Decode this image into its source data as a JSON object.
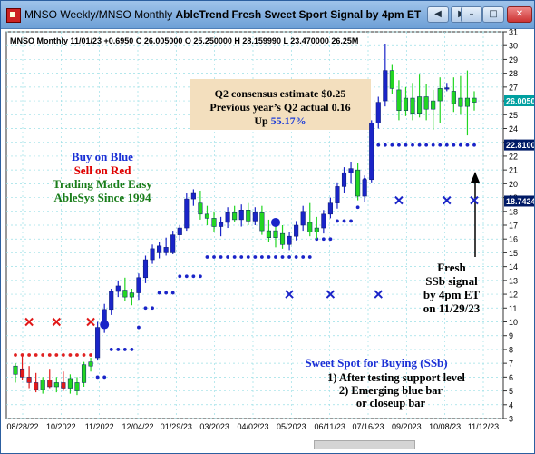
{
  "window": {
    "title": "MNSO Weekly/MNSO Monthly",
    "title_bold": "AbleTrend Fresh Sweet Sport Signal by 4pm ET",
    "buttons": {
      "back": "◀",
      "forward": "▶",
      "minimize": "–",
      "maximize": "□",
      "close": "✕"
    }
  },
  "chart_data": {
    "type": "candlestick",
    "header_line": "MNSO  Monthly 11/01/23 +0.6950 C 26.005000 O 25.250000 H 28.159990 L 23.470000 26.25M",
    "ylim": [
      3,
      31
    ],
    "y_ticks": [
      3,
      4,
      5,
      6,
      7,
      8,
      9,
      10,
      11,
      12,
      13,
      14,
      15,
      16,
      17,
      18,
      19,
      20,
      21,
      22,
      23,
      24,
      25,
      26,
      27,
      28,
      29,
      30,
      31
    ],
    "x_tick_labels": [
      "08/28/22",
      "10/2022",
      "11/2022",
      "12/04/22",
      "01/29/23",
      "03/2023",
      "04/02/23",
      "05/2023",
      "06/11/23",
      "07/16/23",
      "09/2023",
      "10/08/23",
      "11/12/23"
    ],
    "price_tags": [
      {
        "label": "26.0050",
        "value": 26.005,
        "color": "#00a0a0"
      },
      {
        "label": "22.8100",
        "value": 22.81,
        "color": "#001a66"
      },
      {
        "label": "18.7424",
        "value": 18.7424,
        "color": "#001a66"
      }
    ],
    "candles": [
      {
        "o": 6.2,
        "h": 7.0,
        "l": 5.6,
        "c": 6.8,
        "col": "green"
      },
      {
        "o": 6.6,
        "h": 7.5,
        "l": 5.8,
        "c": 6.0,
        "col": "red"
      },
      {
        "o": 6.0,
        "h": 6.8,
        "l": 5.2,
        "c": 5.6,
        "col": "red"
      },
      {
        "o": 5.6,
        "h": 6.3,
        "l": 4.9,
        "c": 5.1,
        "col": "red"
      },
      {
        "o": 5.1,
        "h": 6.0,
        "l": 4.8,
        "c": 5.8,
        "col": "green"
      },
      {
        "o": 5.8,
        "h": 6.6,
        "l": 5.2,
        "c": 5.3,
        "col": "red"
      },
      {
        "o": 5.3,
        "h": 6.0,
        "l": 4.9,
        "c": 5.6,
        "col": "green"
      },
      {
        "o": 5.6,
        "h": 6.4,
        "l": 5.0,
        "c": 5.2,
        "col": "red"
      },
      {
        "o": 5.2,
        "h": 6.2,
        "l": 4.8,
        "c": 5.9,
        "col": "green"
      },
      {
        "o": 5.0,
        "h": 6.0,
        "l": 4.7,
        "c": 5.6,
        "col": "green"
      },
      {
        "o": 5.6,
        "h": 7.1,
        "l": 5.3,
        "c": 6.9,
        "col": "green"
      },
      {
        "o": 6.8,
        "h": 7.4,
        "l": 6.4,
        "c": 7.1,
        "col": "green"
      },
      {
        "o": 7.4,
        "h": 10.0,
        "l": 7.2,
        "c": 9.6,
        "col": "blue"
      },
      {
        "o": 9.6,
        "h": 11.3,
        "l": 9.2,
        "c": 10.9,
        "col": "blue"
      },
      {
        "o": 10.9,
        "h": 12.4,
        "l": 10.5,
        "c": 12.2,
        "col": "blue"
      },
      {
        "o": 12.2,
        "h": 13.0,
        "l": 11.8,
        "c": 12.6,
        "col": "blue"
      },
      {
        "o": 12.3,
        "h": 13.2,
        "l": 11.5,
        "c": 11.8,
        "col": "green"
      },
      {
        "o": 11.8,
        "h": 12.4,
        "l": 11.2,
        "c": 12.1,
        "col": "green"
      },
      {
        "o": 12.1,
        "h": 13.5,
        "l": 11.6,
        "c": 13.2,
        "col": "blue"
      },
      {
        "o": 13.2,
        "h": 14.8,
        "l": 12.8,
        "c": 14.5,
        "col": "blue"
      },
      {
        "o": 14.5,
        "h": 15.6,
        "l": 14.2,
        "c": 15.3,
        "col": "blue"
      },
      {
        "o": 15.0,
        "h": 15.8,
        "l": 14.6,
        "c": 15.5,
        "col": "blue"
      },
      {
        "o": 15.4,
        "h": 16.1,
        "l": 14.8,
        "c": 15.0,
        "col": "blue"
      },
      {
        "o": 15.0,
        "h": 16.6,
        "l": 14.9,
        "c": 16.3,
        "col": "blue"
      },
      {
        "o": 16.3,
        "h": 17.0,
        "l": 15.9,
        "c": 16.8,
        "col": "blue"
      },
      {
        "o": 16.8,
        "h": 19.3,
        "l": 16.6,
        "c": 18.9,
        "col": "blue"
      },
      {
        "o": 18.9,
        "h": 19.6,
        "l": 18.4,
        "c": 19.3,
        "col": "blue"
      },
      {
        "o": 18.6,
        "h": 19.5,
        "l": 17.4,
        "c": 17.8,
        "col": "green"
      },
      {
        "o": 17.8,
        "h": 18.4,
        "l": 17.0,
        "c": 17.5,
        "col": "green"
      },
      {
        "o": 17.5,
        "h": 18.0,
        "l": 16.5,
        "c": 16.9,
        "col": "green"
      },
      {
        "o": 16.9,
        "h": 17.6,
        "l": 16.2,
        "c": 17.2,
        "col": "blue"
      },
      {
        "o": 17.2,
        "h": 18.3,
        "l": 16.8,
        "c": 17.9,
        "col": "blue"
      },
      {
        "o": 17.9,
        "h": 18.4,
        "l": 17.2,
        "c": 17.4,
        "col": "green"
      },
      {
        "o": 17.4,
        "h": 18.5,
        "l": 16.9,
        "c": 18.1,
        "col": "blue"
      },
      {
        "o": 18.1,
        "h": 18.6,
        "l": 17.0,
        "c": 17.3,
        "col": "green"
      },
      {
        "o": 17.3,
        "h": 18.3,
        "l": 17.0,
        "c": 17.9,
        "col": "blue"
      },
      {
        "o": 17.9,
        "h": 18.4,
        "l": 16.3,
        "c": 16.6,
        "col": "green"
      },
      {
        "o": 16.6,
        "h": 17.4,
        "l": 15.8,
        "c": 16.1,
        "col": "green"
      },
      {
        "o": 16.1,
        "h": 16.9,
        "l": 15.4,
        "c": 16.6,
        "col": "green"
      },
      {
        "o": 16.4,
        "h": 17.0,
        "l": 15.3,
        "c": 15.6,
        "col": "green"
      },
      {
        "o": 15.6,
        "h": 16.5,
        "l": 15.2,
        "c": 16.2,
        "col": "blue"
      },
      {
        "o": 16.2,
        "h": 17.3,
        "l": 15.9,
        "c": 17.0,
        "col": "blue"
      },
      {
        "o": 17.0,
        "h": 18.4,
        "l": 16.6,
        "c": 18.0,
        "col": "blue"
      },
      {
        "o": 17.2,
        "h": 18.6,
        "l": 16.2,
        "c": 16.5,
        "col": "green"
      },
      {
        "o": 16.5,
        "h": 17.6,
        "l": 16.0,
        "c": 16.8,
        "col": "green"
      },
      {
        "o": 16.8,
        "h": 18.1,
        "l": 16.4,
        "c": 17.8,
        "col": "blue"
      },
      {
        "o": 17.8,
        "h": 19.0,
        "l": 17.5,
        "c": 18.6,
        "col": "blue"
      },
      {
        "o": 18.6,
        "h": 20.1,
        "l": 18.2,
        "c": 19.8,
        "col": "blue"
      },
      {
        "o": 19.8,
        "h": 21.2,
        "l": 19.3,
        "c": 20.8,
        "col": "blue"
      },
      {
        "o": 20.8,
        "h": 21.6,
        "l": 20.0,
        "c": 21.1,
        "col": "blue"
      },
      {
        "o": 21.0,
        "h": 21.5,
        "l": 18.8,
        "c": 19.1,
        "col": "green"
      },
      {
        "o": 19.1,
        "h": 20.6,
        "l": 18.7,
        "c": 20.3,
        "col": "blue"
      },
      {
        "o": 20.3,
        "h": 24.6,
        "l": 20.1,
        "c": 24.4,
        "col": "blue"
      },
      {
        "o": 24.4,
        "h": 26.3,
        "l": 24.0,
        "c": 25.9,
        "col": "blue"
      },
      {
        "o": 26.0,
        "h": 30.1,
        "l": 25.6,
        "c": 28.2,
        "col": "blue"
      },
      {
        "o": 28.2,
        "h": 28.6,
        "l": 26.5,
        "c": 26.9,
        "col": "green"
      },
      {
        "o": 26.8,
        "h": 27.5,
        "l": 24.6,
        "c": 25.3,
        "col": "green"
      },
      {
        "o": 25.3,
        "h": 27.0,
        "l": 24.9,
        "c": 26.2,
        "col": "green"
      },
      {
        "o": 26.2,
        "h": 27.3,
        "l": 24.6,
        "c": 25.1,
        "col": "green"
      },
      {
        "o": 25.1,
        "h": 27.9,
        "l": 24.8,
        "c": 26.3,
        "col": "green"
      },
      {
        "o": 26.3,
        "h": 27.2,
        "l": 24.6,
        "c": 25.4,
        "col": "green"
      },
      {
        "o": 25.4,
        "h": 26.8,
        "l": 23.9,
        "c": 26.0,
        "col": "green"
      },
      {
        "o": 26.0,
        "h": 27.7,
        "l": 24.4,
        "c": 26.9,
        "col": "green"
      },
      {
        "o": 26.9,
        "h": 27.3,
        "l": 26.7,
        "c": 26.95,
        "col": "blue"
      },
      {
        "o": 26.7,
        "h": 27.7,
        "l": 25.2,
        "c": 25.8,
        "col": "green"
      },
      {
        "o": 26.2,
        "h": 27.8,
        "l": 25.0,
        "c": 25.6,
        "col": "green"
      },
      {
        "o": 25.6,
        "h": 28.2,
        "l": 23.5,
        "c": 26.2,
        "col": "green"
      },
      {
        "o": 26.2,
        "h": 26.7,
        "l": 25.3,
        "c": 25.9,
        "col": "green"
      }
    ],
    "stop_dots": [
      {
        "from": 0,
        "to": 11,
        "value": 7.6,
        "color": "red"
      },
      {
        "from": 12,
        "to": 13,
        "value": 6.0,
        "color": "blue"
      },
      {
        "from": 14,
        "to": 17,
        "value": 8.0,
        "color": "blue"
      },
      {
        "from": 18,
        "to": 18,
        "value": 9.6,
        "color": "blue"
      },
      {
        "from": 19,
        "to": 20,
        "value": 11.0,
        "color": "blue"
      },
      {
        "from": 21,
        "to": 23,
        "value": 12.1,
        "color": "blue"
      },
      {
        "from": 24,
        "to": 27,
        "value": 13.3,
        "color": "blue"
      },
      {
        "from": 28,
        "to": 43,
        "value": 14.7,
        "color": "blue"
      },
      {
        "from": 44,
        "to": 46,
        "value": 16.0,
        "color": "blue"
      },
      {
        "from": 47,
        "to": 49,
        "value": 17.3,
        "color": "blue"
      },
      {
        "from": 50,
        "to": 50,
        "value": 18.3,
        "color": "blue"
      },
      {
        "from": 51,
        "to": 51,
        "value": 20.3,
        "color": "blue"
      },
      {
        "from": 52,
        "to": 52,
        "value": 21.7,
        "color": "blue"
      },
      {
        "from": 53,
        "to": 67,
        "value": 22.8,
        "color": "blue"
      }
    ],
    "x_markers": [
      {
        "bar": 2,
        "value": 10.0,
        "color": "red"
      },
      {
        "bar": 6,
        "value": 10.0,
        "color": "red"
      },
      {
        "bar": 11,
        "value": 10.0,
        "color": "red"
      },
      {
        "bar": 40,
        "value": 12.0,
        "color": "blue"
      },
      {
        "bar": 46,
        "value": 12.0,
        "color": "blue"
      },
      {
        "bar": 53,
        "value": 12.0,
        "color": "blue"
      },
      {
        "bar": 56,
        "value": 18.8,
        "color": "blue"
      },
      {
        "bar": 63,
        "value": 18.8,
        "color": "blue"
      },
      {
        "bar": 67,
        "value": 18.8,
        "color": "blue"
      }
    ],
    "signal_dots": [
      {
        "bar": 13,
        "value": 9.8
      },
      {
        "bar": 38,
        "value": 17.2
      }
    ],
    "annotations": {
      "estimate_box": {
        "line1": "Q2 consensus estimate $0.25",
        "line2": "Previous year’s Q2 actual 0.16",
        "line3_prefix": "Up",
        "line3_value": "55.17%"
      },
      "legend": {
        "buy": "Buy on Blue",
        "sell": "Sell on Red",
        "easy": "Trading Made Easy",
        "since": "AbleSys Since 1994"
      },
      "fresh": [
        "Fresh",
        "SSb signal",
        "by 4pm ET",
        "on 11/29/23"
      ],
      "sweet_spot": {
        "title": "Sweet Spot for Buying (SSb)",
        "items": [
          "1) After testing support level",
          "2) Emerging blue bar",
          "or closeup bar"
        ]
      }
    }
  }
}
